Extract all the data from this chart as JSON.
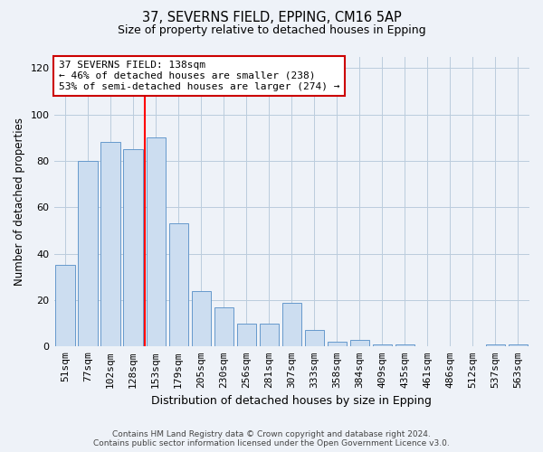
{
  "title1": "37, SEVERNS FIELD, EPPING, CM16 5AP",
  "title2": "Size of property relative to detached houses in Epping",
  "xlabel": "Distribution of detached houses by size in Epping",
  "ylabel": "Number of detached properties",
  "categories": [
    "51sqm",
    "77sqm",
    "102sqm",
    "128sqm",
    "153sqm",
    "179sqm",
    "205sqm",
    "230sqm",
    "256sqm",
    "281sqm",
    "307sqm",
    "333sqm",
    "358sqm",
    "384sqm",
    "409sqm",
    "435sqm",
    "461sqm",
    "486sqm",
    "512sqm",
    "537sqm",
    "563sqm"
  ],
  "values": [
    35,
    80,
    88,
    85,
    90,
    53,
    24,
    17,
    10,
    10,
    19,
    7,
    2,
    3,
    1,
    1,
    0,
    0,
    0,
    1,
    1
  ],
  "bar_color": "#ccddf0",
  "bar_edge_color": "#6699cc",
  "red_line_x": 3.5,
  "annotation_title": "37 SEVERNS FIELD: 138sqm",
  "annotation_line1": "← 46% of detached houses are smaller (238)",
  "annotation_line2": "53% of semi-detached houses are larger (274) →",
  "annotation_box_color": "#ffffff",
  "annotation_box_edge": "#cc0000",
  "ylim": [
    0,
    125
  ],
  "yticks": [
    0,
    20,
    40,
    60,
    80,
    100,
    120
  ],
  "footer1": "Contains HM Land Registry data © Crown copyright and database right 2024.",
  "footer2": "Contains public sector information licensed under the Open Government Licence v3.0.",
  "background_color": "#eef2f8",
  "title1_fontsize": 10.5,
  "title2_fontsize": 9,
  "ylabel_fontsize": 8.5,
  "xlabel_fontsize": 9,
  "tick_fontsize": 8,
  "footer_fontsize": 6.5
}
